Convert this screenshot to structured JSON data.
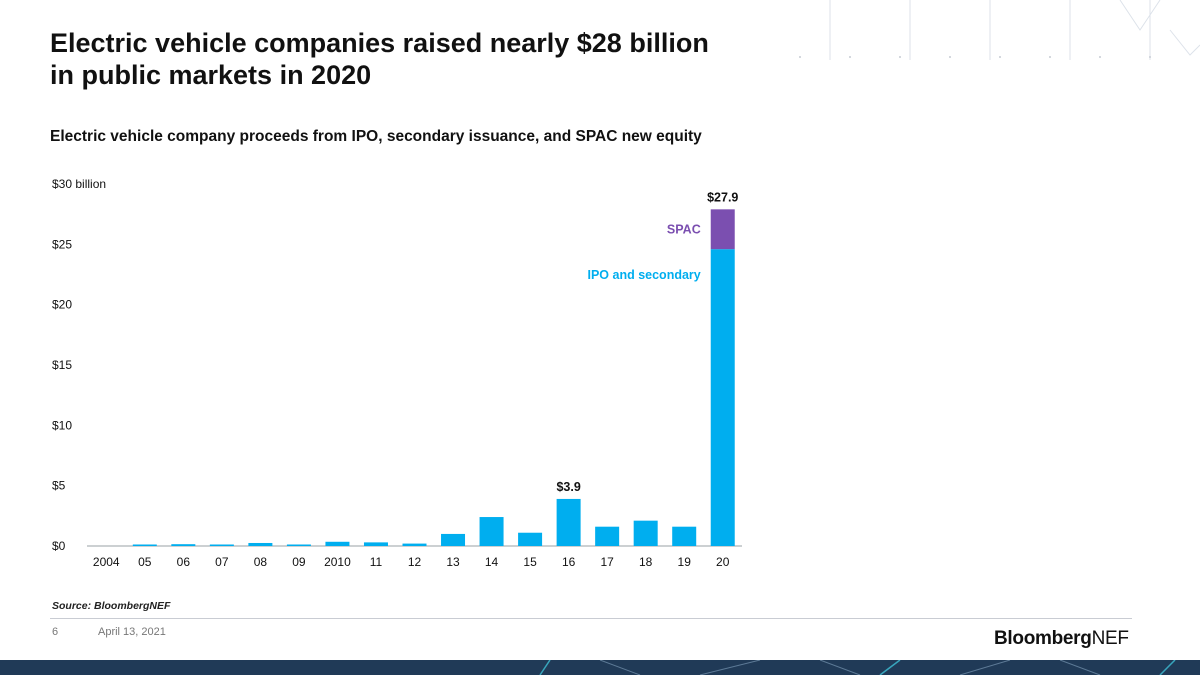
{
  "slide": {
    "title_line1": "Electric vehicle companies raised nearly $28 billion",
    "title_line2": "in public markets in 2020",
    "subtitle": "Electric vehicle company proceeds from IPO, secondary issuance, and SPAC new equity",
    "source": "Source: BloombergNEF",
    "page_number": "6",
    "date": "April 13, 2021",
    "brand_bold": "Bloomberg",
    "brand_light": "NEF"
  },
  "colors": {
    "ipo": "#00aeef",
    "spac": "#7b4fb0",
    "axis": "#9aa0a6",
    "text": "#111111",
    "band": "#203a57"
  },
  "chart_data": {
    "type": "bar",
    "stacked": true,
    "title": "Electric vehicle company proceeds from IPO, secondary issuance, and SPAC new equity",
    "xlabel": "",
    "ylabel": "",
    "ylim": [
      0,
      30
    ],
    "yticks": [
      0,
      5,
      10,
      15,
      20,
      25,
      30
    ],
    "ytick_labels": [
      "$0",
      "$5",
      "$10",
      "$15",
      "$20",
      "$25",
      "$30 billion"
    ],
    "categories": [
      "2004",
      "05",
      "06",
      "07",
      "08",
      "09",
      "2010",
      "11",
      "12",
      "13",
      "14",
      "15",
      "16",
      "17",
      "18",
      "19",
      "20"
    ],
    "series": [
      {
        "name": "IPO and secondary",
        "color": "#00aeef",
        "values": [
          0.0,
          0.1,
          0.15,
          0.1,
          0.25,
          0.05,
          0.35,
          0.3,
          0.2,
          1.0,
          2.4,
          1.1,
          3.9,
          1.6,
          2.1,
          1.6,
          24.6
        ]
      },
      {
        "name": "SPAC",
        "color": "#7b4fb0",
        "values": [
          0,
          0,
          0,
          0,
          0,
          0,
          0,
          0,
          0,
          0,
          0,
          0,
          0,
          0,
          0,
          0,
          3.3
        ]
      }
    ],
    "annotations": [
      {
        "category": "16",
        "text": "$3.9"
      },
      {
        "category": "20",
        "text": "$27.9"
      }
    ],
    "series_labels": [
      {
        "series": "SPAC",
        "text": "SPAC"
      },
      {
        "series": "IPO and secondary",
        "text": "IPO and secondary"
      }
    ]
  }
}
